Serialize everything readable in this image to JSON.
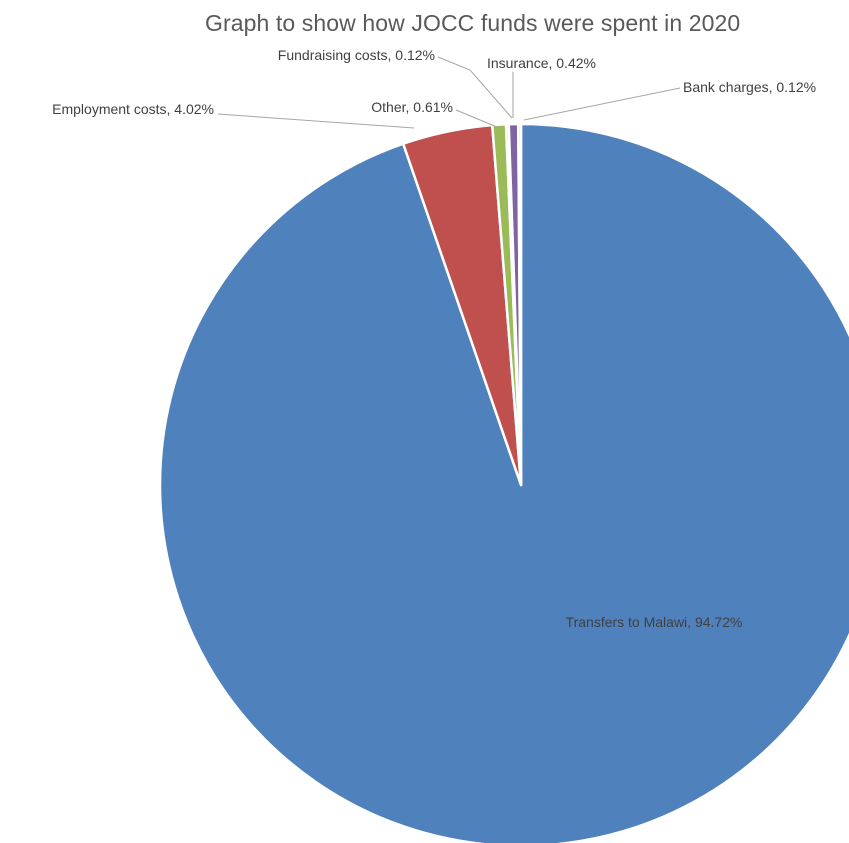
{
  "chart_data": {
    "type": "pie",
    "title": "Graph to show how JOCC funds were spent in 2020",
    "slices": [
      {
        "name": "Transfers to Malawi",
        "value": 94.72,
        "label": "Transfers to Malawi, 94.72%",
        "color": "#4f81bd"
      },
      {
        "name": "Employment costs",
        "value": 4.02,
        "label": "Employment costs, 4.02%",
        "color": "#c0504d"
      },
      {
        "name": "Other",
        "value": 0.61,
        "label": "Other, 0.61%",
        "color": "#9bbb59"
      },
      {
        "name": "Fundraising costs",
        "value": 0.12,
        "label": "Fundraising costs, 0.12%",
        "color": "#4bacc6"
      },
      {
        "name": "Insurance",
        "value": 0.42,
        "label": "Insurance, 0.42%",
        "color": "#8064a2"
      },
      {
        "name": "Bank charges",
        "value": 0.12,
        "label": "Bank charges, 0.12%",
        "color": "#f79646"
      }
    ],
    "start_angle_deg": 0,
    "direction": "clockwise",
    "legend": "none",
    "data_labels": "category name and percentage"
  }
}
